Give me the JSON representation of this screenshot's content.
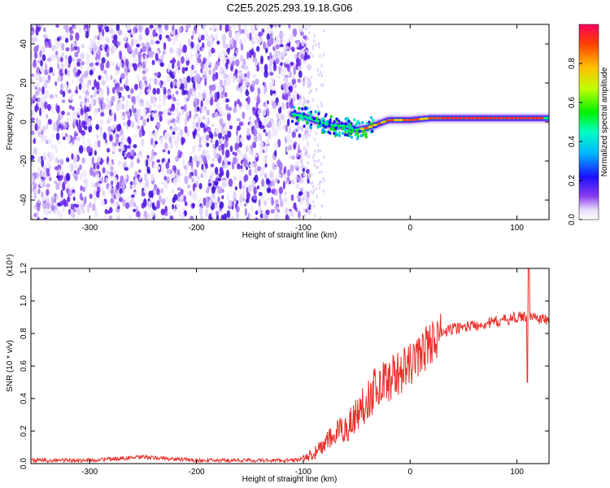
{
  "title": "C2E5.2025.293.19.18.G06",
  "chart_data": [
    {
      "type": "heatmap",
      "name": "spectrogram",
      "xlabel": "Height of straight line (km)",
      "ylabel": "Frequency (Hz)",
      "xlim": [
        -355,
        130
      ],
      "ylim": [
        -50,
        50
      ],
      "xticks": [
        -300,
        -200,
        -100,
        0,
        100
      ],
      "yticks": [
        -40,
        -20,
        0,
        20,
        40
      ],
      "colorbar": {
        "label": "Normalized spectral amplitude",
        "range": [
          0,
          1
        ],
        "ticks": [
          0.0,
          0.2,
          0.4,
          0.6,
          0.8
        ]
      },
      "noise_region_x": [
        -355,
        -100
      ],
      "signal_ridge": {
        "x": [
          -110,
          -100,
          -90,
          -80,
          -70,
          -60,
          -50,
          -40,
          -30,
          -20,
          -10,
          0,
          20,
          40,
          60,
          80,
          100,
          130
        ],
        "frequency": [
          4,
          3,
          1,
          -1,
          -2,
          -2,
          -4,
          -3,
          -1,
          1,
          1,
          1,
          2,
          2,
          2,
          2,
          2,
          2
        ]
      }
    },
    {
      "type": "line",
      "name": "snr",
      "xlabel": "Height of straight line (km)",
      "ylabel": "SNR (10 * v/v)",
      "multiplier": "(x10⁴)",
      "xlim": [
        -355,
        130
      ],
      "ylim": [
        0,
        1.2
      ],
      "xticks": [
        -300,
        -200,
        -100,
        0,
        100
      ],
      "yticks": [
        0.0,
        0.2,
        0.4,
        0.6,
        0.8,
        1.0,
        1.2
      ],
      "color": "#e8302a",
      "envelope": {
        "x": [
          -355,
          -300,
          -250,
          -200,
          -150,
          -110,
          -100,
          -90,
          -80,
          -70,
          -60,
          -50,
          -40,
          -30,
          -20,
          -10,
          0,
          10,
          20,
          30,
          40,
          60,
          80,
          100,
          105,
          110,
          115,
          130
        ],
        "y": [
          0.02,
          0.02,
          0.04,
          0.02,
          0.02,
          0.02,
          0.03,
          0.06,
          0.12,
          0.18,
          0.22,
          0.3,
          0.4,
          0.48,
          0.52,
          0.56,
          0.6,
          0.68,
          0.75,
          0.8,
          0.83,
          0.85,
          0.87,
          0.9,
          0.9,
          0.91,
          0.9,
          0.88
        ]
      }
    }
  ]
}
